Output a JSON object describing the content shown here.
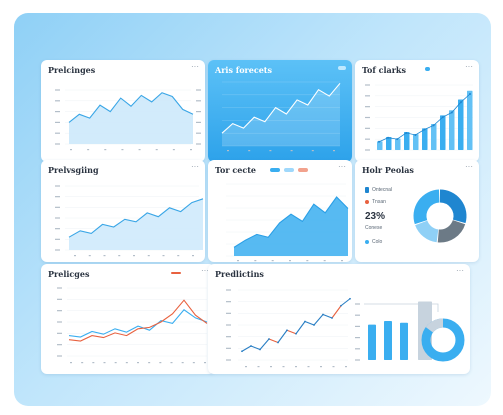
{
  "colors": {
    "blue": "#3aaef0",
    "blue_dark": "#1f86d0",
    "light_blue": "#bfe3fa",
    "red": "#e8613f",
    "gray": "#9aa7b3"
  },
  "cards": [
    {
      "title": "Prelcinges",
      "menu": "···"
    },
    {
      "title": "Aris forecets",
      "menu": ""
    },
    {
      "title": "Tof clarks",
      "menu": "···"
    },
    {
      "title": "Prelvsgiing",
      "menu": "···"
    },
    {
      "title": "Tor cecte",
      "menu": "···"
    },
    {
      "title": "Holr Peolas",
      "menu": "···"
    },
    {
      "title": "Prelicges",
      "menu": "···"
    },
    {
      "title": "Predlictins",
      "menu": "···"
    }
  ],
  "donut_card": {
    "legend": [
      "Ontecnal",
      "Tnsan",
      "Conese"
    ],
    "pct": "23%",
    "pct_sub": "Colo"
  },
  "chart_data": [
    {
      "type": "area",
      "series": [
        {
          "values": [
            40,
            55,
            48,
            72,
            60,
            85,
            70,
            90,
            78,
            95,
            88,
            64,
            55
          ]
        }
      ]
    },
    {
      "type": "area",
      "series": [
        {
          "values": [
            20,
            35,
            28,
            45,
            38,
            60,
            50,
            72,
            64,
            88,
            78,
            98
          ]
        }
      ]
    },
    {
      "type": "bar",
      "series": [
        {
          "values": [
            12,
            18,
            16,
            25,
            22,
            30,
            36,
            48,
            55,
            70,
            82
          ]
        }
      ]
    },
    {
      "type": "area",
      "series": [
        {
          "values": [
            20,
            30,
            26,
            40,
            36,
            48,
            44,
            58,
            52,
            66,
            60,
            74,
            80
          ]
        }
      ]
    },
    {
      "type": "area",
      "series": [
        {
          "values": [
            12,
            22,
            30,
            26,
            46,
            58,
            48,
            72,
            60,
            82,
            66
          ]
        }
      ]
    },
    {
      "type": "pie",
      "values": [
        30,
        22,
        18,
        30
      ]
    },
    {
      "type": "line",
      "series": [
        {
          "values": [
            30,
            28,
            36,
            32,
            40,
            35,
            44,
            38,
            52,
            48,
            68,
            56,
            50
          ]
        },
        {
          "values": [
            24,
            22,
            30,
            27,
            34,
            30,
            40,
            42,
            50,
            62,
            82,
            60,
            48
          ]
        }
      ]
    },
    {
      "type": "line",
      "series": [
        {
          "values": [
            10,
            16,
            12,
            24,
            20,
            34,
            30,
            44,
            40,
            52,
            48,
            62,
            70
          ]
        },
        {
          "type": "bar",
          "values": [
            40,
            44,
            42,
            66
          ]
        }
      ]
    }
  ]
}
